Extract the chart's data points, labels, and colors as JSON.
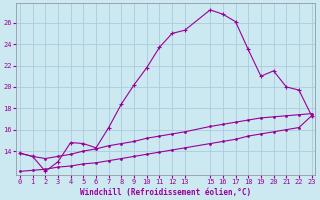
{
  "xlabel": "Windchill (Refroidissement éolien,°C)",
  "background_color": "#cce8f0",
  "line_color": "#990099",
  "grid_color": "#aaccdd",
  "x_upper": [
    0,
    1,
    2,
    3,
    4,
    5,
    6,
    7,
    8,
    9,
    10,
    11,
    12,
    13,
    15,
    16,
    17,
    18,
    19,
    20,
    21,
    22,
    23
  ],
  "y_upper": [
    13.8,
    13.5,
    12.1,
    13.0,
    14.8,
    14.7,
    14.3,
    16.2,
    18.4,
    20.2,
    21.8,
    23.7,
    25.0,
    25.3,
    27.2,
    26.8,
    26.1,
    23.5,
    21.0,
    21.5,
    20.0,
    19.7,
    17.3
  ],
  "x_mid": [
    0,
    1,
    2,
    3,
    4,
    5,
    6,
    7,
    8,
    9,
    10,
    11,
    12,
    13,
    15,
    16,
    17,
    18,
    19,
    20,
    21,
    22,
    23
  ],
  "y_mid": [
    13.8,
    13.5,
    13.3,
    13.5,
    13.7,
    14.0,
    14.2,
    14.5,
    14.7,
    14.9,
    15.2,
    15.4,
    15.6,
    15.8,
    16.3,
    16.5,
    16.7,
    16.9,
    17.1,
    17.2,
    17.3,
    17.4,
    17.5
  ],
  "x_low": [
    0,
    1,
    2,
    3,
    4,
    5,
    6,
    7,
    8,
    9,
    10,
    11,
    12,
    13,
    15,
    16,
    17,
    18,
    19,
    20,
    21,
    22,
    23
  ],
  "y_low": [
    12.1,
    12.2,
    12.3,
    12.5,
    12.6,
    12.8,
    12.9,
    13.1,
    13.3,
    13.5,
    13.7,
    13.9,
    14.1,
    14.3,
    14.7,
    14.9,
    15.1,
    15.4,
    15.6,
    15.8,
    16.0,
    16.2,
    17.3
  ],
  "xlim": [
    -0.3,
    23.3
  ],
  "ylim": [
    11.8,
    27.8
  ],
  "yticks": [
    14,
    16,
    18,
    20,
    22,
    24,
    26
  ],
  "xticks": [
    0,
    1,
    2,
    3,
    4,
    5,
    6,
    7,
    8,
    9,
    10,
    11,
    12,
    13,
    15,
    16,
    17,
    18,
    19,
    20,
    21,
    22,
    23
  ],
  "xlabel_fontsize": 5.5,
  "tick_fontsize": 5.0
}
